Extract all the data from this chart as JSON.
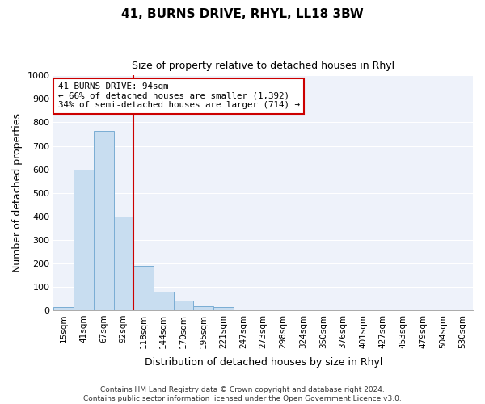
{
  "title": "41, BURNS DRIVE, RHYL, LL18 3BW",
  "subtitle": "Size of property relative to detached houses in Rhyl",
  "xlabel": "Distribution of detached houses by size in Rhyl",
  "ylabel": "Number of detached properties",
  "bar_labels": [
    "15sqm",
    "41sqm",
    "67sqm",
    "92sqm",
    "118sqm",
    "144sqm",
    "170sqm",
    "195sqm",
    "221sqm",
    "247sqm",
    "273sqm",
    "298sqm",
    "324sqm",
    "350sqm",
    "376sqm",
    "401sqm",
    "427sqm",
    "453sqm",
    "479sqm",
    "504sqm",
    "530sqm"
  ],
  "bar_values": [
    15,
    600,
    765,
    400,
    190,
    78,
    40,
    18,
    12,
    0,
    0,
    0,
    0,
    0,
    0,
    0,
    0,
    0,
    0,
    0,
    0
  ],
  "bar_color": "#c8ddf0",
  "bar_edge_color": "#7aadd4",
  "vline_index": 3,
  "vline_color": "#cc0000",
  "annotation_title": "41 BURNS DRIVE: 94sqm",
  "annotation_line1": "← 66% of detached houses are smaller (1,392)",
  "annotation_line2": "34% of semi-detached houses are larger (714) →",
  "annotation_box_color": "#ffffff",
  "annotation_box_edge": "#cc0000",
  "ylim": [
    0,
    1000
  ],
  "yticks": [
    0,
    100,
    200,
    300,
    400,
    500,
    600,
    700,
    800,
    900,
    1000
  ],
  "footer1": "Contains HM Land Registry data © Crown copyright and database right 2024.",
  "footer2": "Contains public sector information licensed under the Open Government Licence v3.0.",
  "fig_background": "#ffffff",
  "plot_background": "#eef2fa",
  "grid_color": "#ffffff"
}
